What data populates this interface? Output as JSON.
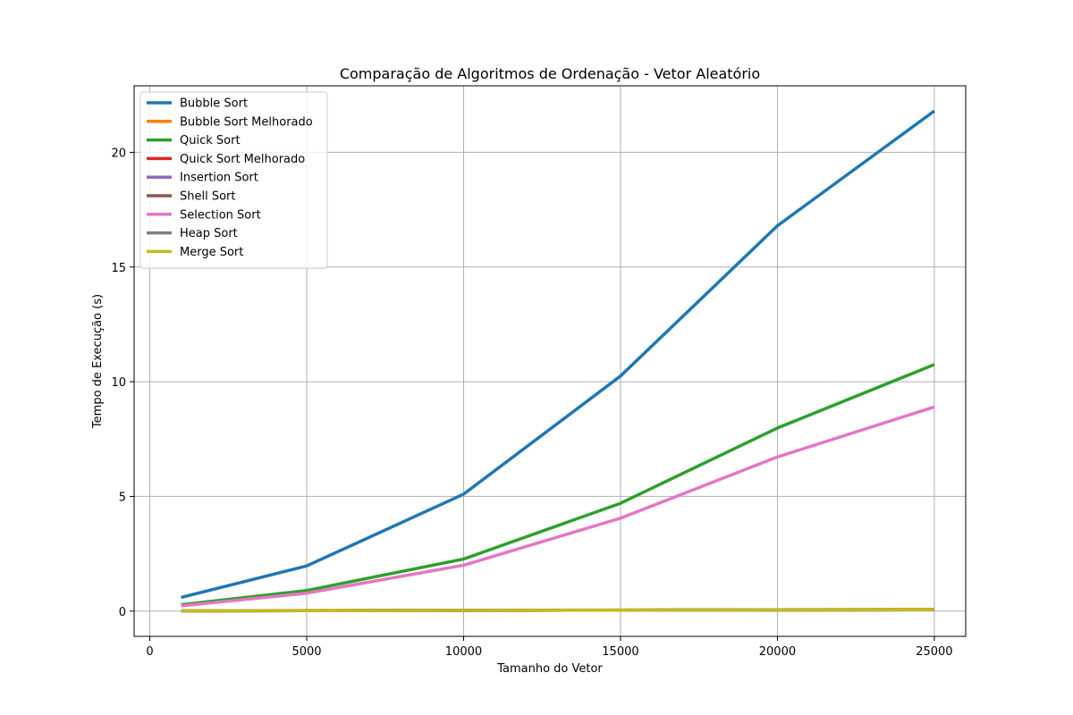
{
  "chart_data": {
    "type": "line",
    "title": "Comparação de Algoritmos de Ordenação - Vetor Aleatório",
    "xlabel": "Tamanho do Vetor",
    "ylabel": "Tempo de Execução (s)",
    "x": [
      1000,
      5000,
      10000,
      15000,
      20000,
      25000
    ],
    "xlim": [
      -500,
      26000
    ],
    "ylim": [
      -1.1,
      22.9
    ],
    "xticks": [
      0,
      5000,
      10000,
      15000,
      20000,
      25000
    ],
    "yticks": [
      0,
      5,
      10,
      15,
      20
    ],
    "grid": true,
    "legend_position": "top-left",
    "series": [
      {
        "name": "Bubble Sort",
        "color": "#1f77b4",
        "values": [
          0.6,
          1.97,
          5.1,
          10.25,
          16.8,
          21.8
        ]
      },
      {
        "name": "Bubble Sort Melhorado",
        "color": "#ff7f0e",
        "values": [
          0.01,
          0.03,
          0.04,
          0.05,
          0.06,
          0.08
        ]
      },
      {
        "name": "Quick Sort",
        "color": "#2ca02c",
        "values": [
          0.28,
          0.9,
          2.27,
          4.7,
          7.98,
          10.75
        ]
      },
      {
        "name": "Quick Sort Melhorado",
        "color": "#d62728",
        "values": [
          0.01,
          0.02,
          0.03,
          0.04,
          0.05,
          0.06
        ]
      },
      {
        "name": "Insertion Sort",
        "color": "#9467bd",
        "values": [
          0.01,
          0.02,
          0.03,
          0.04,
          0.05,
          0.06
        ]
      },
      {
        "name": "Shell Sort",
        "color": "#8c564b",
        "values": [
          0.01,
          0.02,
          0.03,
          0.04,
          0.05,
          0.06
        ]
      },
      {
        "name": "Selection Sort",
        "color": "#e377c2",
        "values": [
          0.23,
          0.78,
          2.0,
          4.05,
          6.72,
          8.9
        ]
      },
      {
        "name": "Heap Sort",
        "color": "#7f7f7f",
        "values": [
          0.01,
          0.02,
          0.03,
          0.04,
          0.05,
          0.06
        ]
      },
      {
        "name": "Merge Sort",
        "color": "#bcbd22",
        "values": [
          0.01,
          0.02,
          0.03,
          0.04,
          0.05,
          0.06
        ]
      }
    ]
  }
}
